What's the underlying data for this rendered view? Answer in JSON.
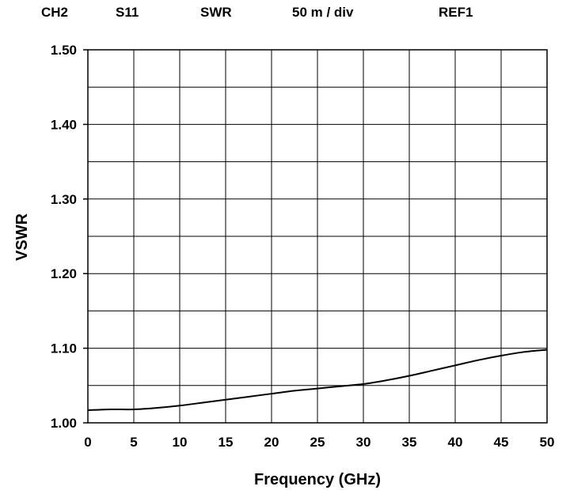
{
  "header": {
    "channel": "CH2",
    "parameter": "S11",
    "format": "SWR",
    "scale": "50 m / div",
    "reference": "REF1"
  },
  "chart_data": {
    "type": "line",
    "xlabel": "Frequency (GHz)",
    "ylabel": "VSWR",
    "xlim": [
      0,
      50
    ],
    "ylim": [
      1.0,
      1.5
    ],
    "x_ticks": [
      "0",
      "5",
      "10",
      "15",
      "20",
      "25",
      "30",
      "35",
      "40",
      "45",
      "50"
    ],
    "y_ticks": [
      "1.00",
      "1.10",
      "1.20",
      "1.30",
      "1.40",
      "1.50"
    ],
    "grid": true,
    "series": [
      {
        "x": [
          0,
          2.5,
          5,
          7.5,
          10,
          12.5,
          15,
          17.5,
          20,
          22.5,
          25,
          27.5,
          30,
          32.5,
          35,
          37.5,
          40,
          42.5,
          45,
          47.5,
          50
        ],
        "y": [
          1.017,
          1.018,
          1.018,
          1.02,
          1.023,
          1.027,
          1.031,
          1.035,
          1.039,
          1.043,
          1.046,
          1.049,
          1.052,
          1.057,
          1.063,
          1.07,
          1.077,
          1.084,
          1.09,
          1.095,
          1.098
        ]
      }
    ],
    "colors": {
      "trace": "#000000",
      "grid": "#000000",
      "background": "#ffffff"
    }
  }
}
